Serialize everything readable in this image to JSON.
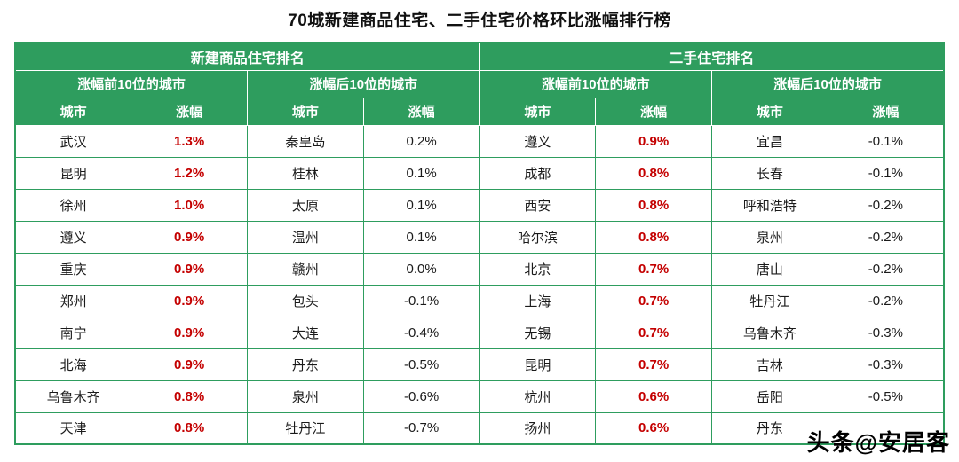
{
  "title": "70城新建商品住宅、二手住宅价格环比涨幅排行榜",
  "watermark": "头条@安居客",
  "colors": {
    "header_green": "#2e9d5e",
    "value_red": "#c40000",
    "border_green": "#2e9d5e",
    "background": "#ffffff"
  },
  "chart_data": {
    "type": "table",
    "title": "70城新建商品住宅、二手住宅价格环比涨幅排行榜",
    "group_headers": [
      "新建商品住宅排名",
      "二手住宅排名"
    ],
    "subgroup_headers": [
      "涨幅前10位的城市",
      "涨幅后10位的城市",
      "涨幅前10位的城市",
      "涨幅后10位的城市"
    ],
    "column_headers": [
      "城市",
      "涨幅"
    ],
    "sections": [
      {
        "group": "新建商品住宅排名",
        "subgroup": "涨幅前10位的城市",
        "value_style": "red-bold",
        "rows": [
          {
            "city": "武汉",
            "value": "1.3%"
          },
          {
            "city": "昆明",
            "value": "1.2%"
          },
          {
            "city": "徐州",
            "value": "1.0%"
          },
          {
            "city": "遵义",
            "value": "0.9%"
          },
          {
            "city": "重庆",
            "value": "0.9%"
          },
          {
            "city": "郑州",
            "value": "0.9%"
          },
          {
            "city": "南宁",
            "value": "0.9%"
          },
          {
            "city": "北海",
            "value": "0.9%"
          },
          {
            "city": "乌鲁木齐",
            "value": "0.8%"
          },
          {
            "city": "天津",
            "value": "0.8%"
          }
        ]
      },
      {
        "group": "新建商品住宅排名",
        "subgroup": "涨幅后10位的城市",
        "value_style": "plain",
        "rows": [
          {
            "city": "秦皇岛",
            "value": "0.2%"
          },
          {
            "city": "桂林",
            "value": "0.1%"
          },
          {
            "city": "太原",
            "value": "0.1%"
          },
          {
            "city": "温州",
            "value": "0.1%"
          },
          {
            "city": "赣州",
            "value": "0.0%"
          },
          {
            "city": "包头",
            "value": "-0.1%"
          },
          {
            "city": "大连",
            "value": "-0.4%"
          },
          {
            "city": "丹东",
            "value": "-0.5%"
          },
          {
            "city": "泉州",
            "value": "-0.6%"
          },
          {
            "city": "牡丹江",
            "value": "-0.7%"
          }
        ]
      },
      {
        "group": "二手住宅排名",
        "subgroup": "涨幅前10位的城市",
        "value_style": "red-bold",
        "rows": [
          {
            "city": "遵义",
            "value": "0.9%"
          },
          {
            "city": "成都",
            "value": "0.8%"
          },
          {
            "city": "西安",
            "value": "0.8%"
          },
          {
            "city": "哈尔滨",
            "value": "0.8%"
          },
          {
            "city": "北京",
            "value": "0.7%"
          },
          {
            "city": "上海",
            "value": "0.7%"
          },
          {
            "city": "无锡",
            "value": "0.7%"
          },
          {
            "city": "昆明",
            "value": "0.7%"
          },
          {
            "city": "杭州",
            "value": "0.6%"
          },
          {
            "city": "扬州",
            "value": "0.6%"
          }
        ]
      },
      {
        "group": "二手住宅排名",
        "subgroup": "涨幅后10位的城市",
        "value_style": "plain",
        "rows": [
          {
            "city": "宜昌",
            "value": "-0.1%"
          },
          {
            "city": "长春",
            "value": "-0.1%"
          },
          {
            "city": "呼和浩特",
            "value": "-0.2%"
          },
          {
            "city": "泉州",
            "value": "-0.2%"
          },
          {
            "city": "唐山",
            "value": "-0.2%"
          },
          {
            "city": "牡丹江",
            "value": "-0.2%"
          },
          {
            "city": "乌鲁木齐",
            "value": "-0.3%"
          },
          {
            "city": "吉林",
            "value": "-0.3%"
          },
          {
            "city": "岳阳",
            "value": "-0.5%"
          },
          {
            "city": "丹东",
            "value": ""
          }
        ]
      }
    ]
  }
}
